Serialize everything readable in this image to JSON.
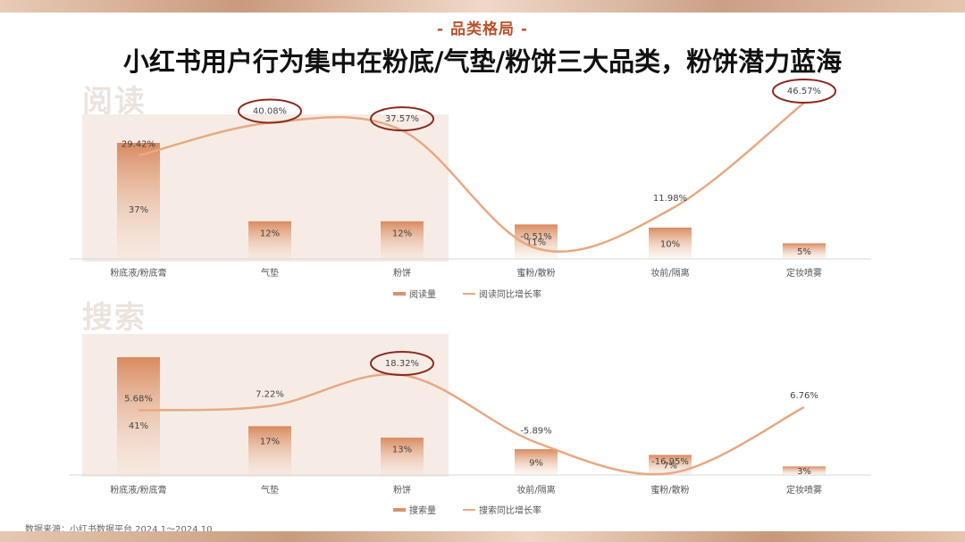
{
  "kicker": "- 品类格局 -",
  "headline": "小红书用户行为集中在粉底/气垫/粉饼三大品类，粉饼潜力蓝海",
  "source": "数据来源：小红书数据平台 2024.1～2024.10",
  "colors": {
    "bar": "#d9916a",
    "line": "#e8a982",
    "circle": "#8c2a1e",
    "accent": "#b9522c"
  },
  "chart_data": [
    {
      "type": "bar",
      "title": "阅读",
      "categories": [
        "粉底液/粉底膏",
        "气垫",
        "粉饼",
        "蜜粉/散粉",
        "妆前/隔离",
        "定妆喷雾"
      ],
      "series": [
        {
          "name": "阅读量",
          "type": "bar",
          "labels": [
            "37%",
            "12%",
            "12%",
            "11%",
            "10%",
            "5%"
          ],
          "values": [
            37,
            12,
            12,
            11,
            10,
            5
          ]
        },
        {
          "name": "阅读同比增长率",
          "type": "line",
          "labels": [
            "29.42%",
            "40.08%",
            "37.57%",
            "-0.51%",
            "11.98%",
            "46.57%"
          ],
          "values": [
            29.42,
            40.08,
            37.57,
            -0.51,
            11.98,
            46.57
          ]
        }
      ],
      "circled": [
        1,
        2,
        5
      ]
    },
    {
      "type": "bar",
      "title": "搜索",
      "categories": [
        "粉底液/粉底膏",
        "气垫",
        "粉饼",
        "妆前/隔离",
        "蜜粉/散粉",
        "定妆喷雾"
      ],
      "series": [
        {
          "name": "搜索量",
          "type": "bar",
          "labels": [
            "41%",
            "17%",
            "13%",
            "9%",
            "7%",
            "3%"
          ],
          "values": [
            41,
            17,
            13,
            9,
            7,
            3
          ]
        },
        {
          "name": "搜索同比增长率",
          "type": "line",
          "labels": [
            "5.68%",
            "7.22%",
            "18.32%",
            "-5.89%",
            "-16.95%",
            "6.76%"
          ],
          "values": [
            5.68,
            7.22,
            18.32,
            -5.89,
            -16.95,
            6.76
          ]
        }
      ],
      "circled": [
        2
      ]
    }
  ]
}
